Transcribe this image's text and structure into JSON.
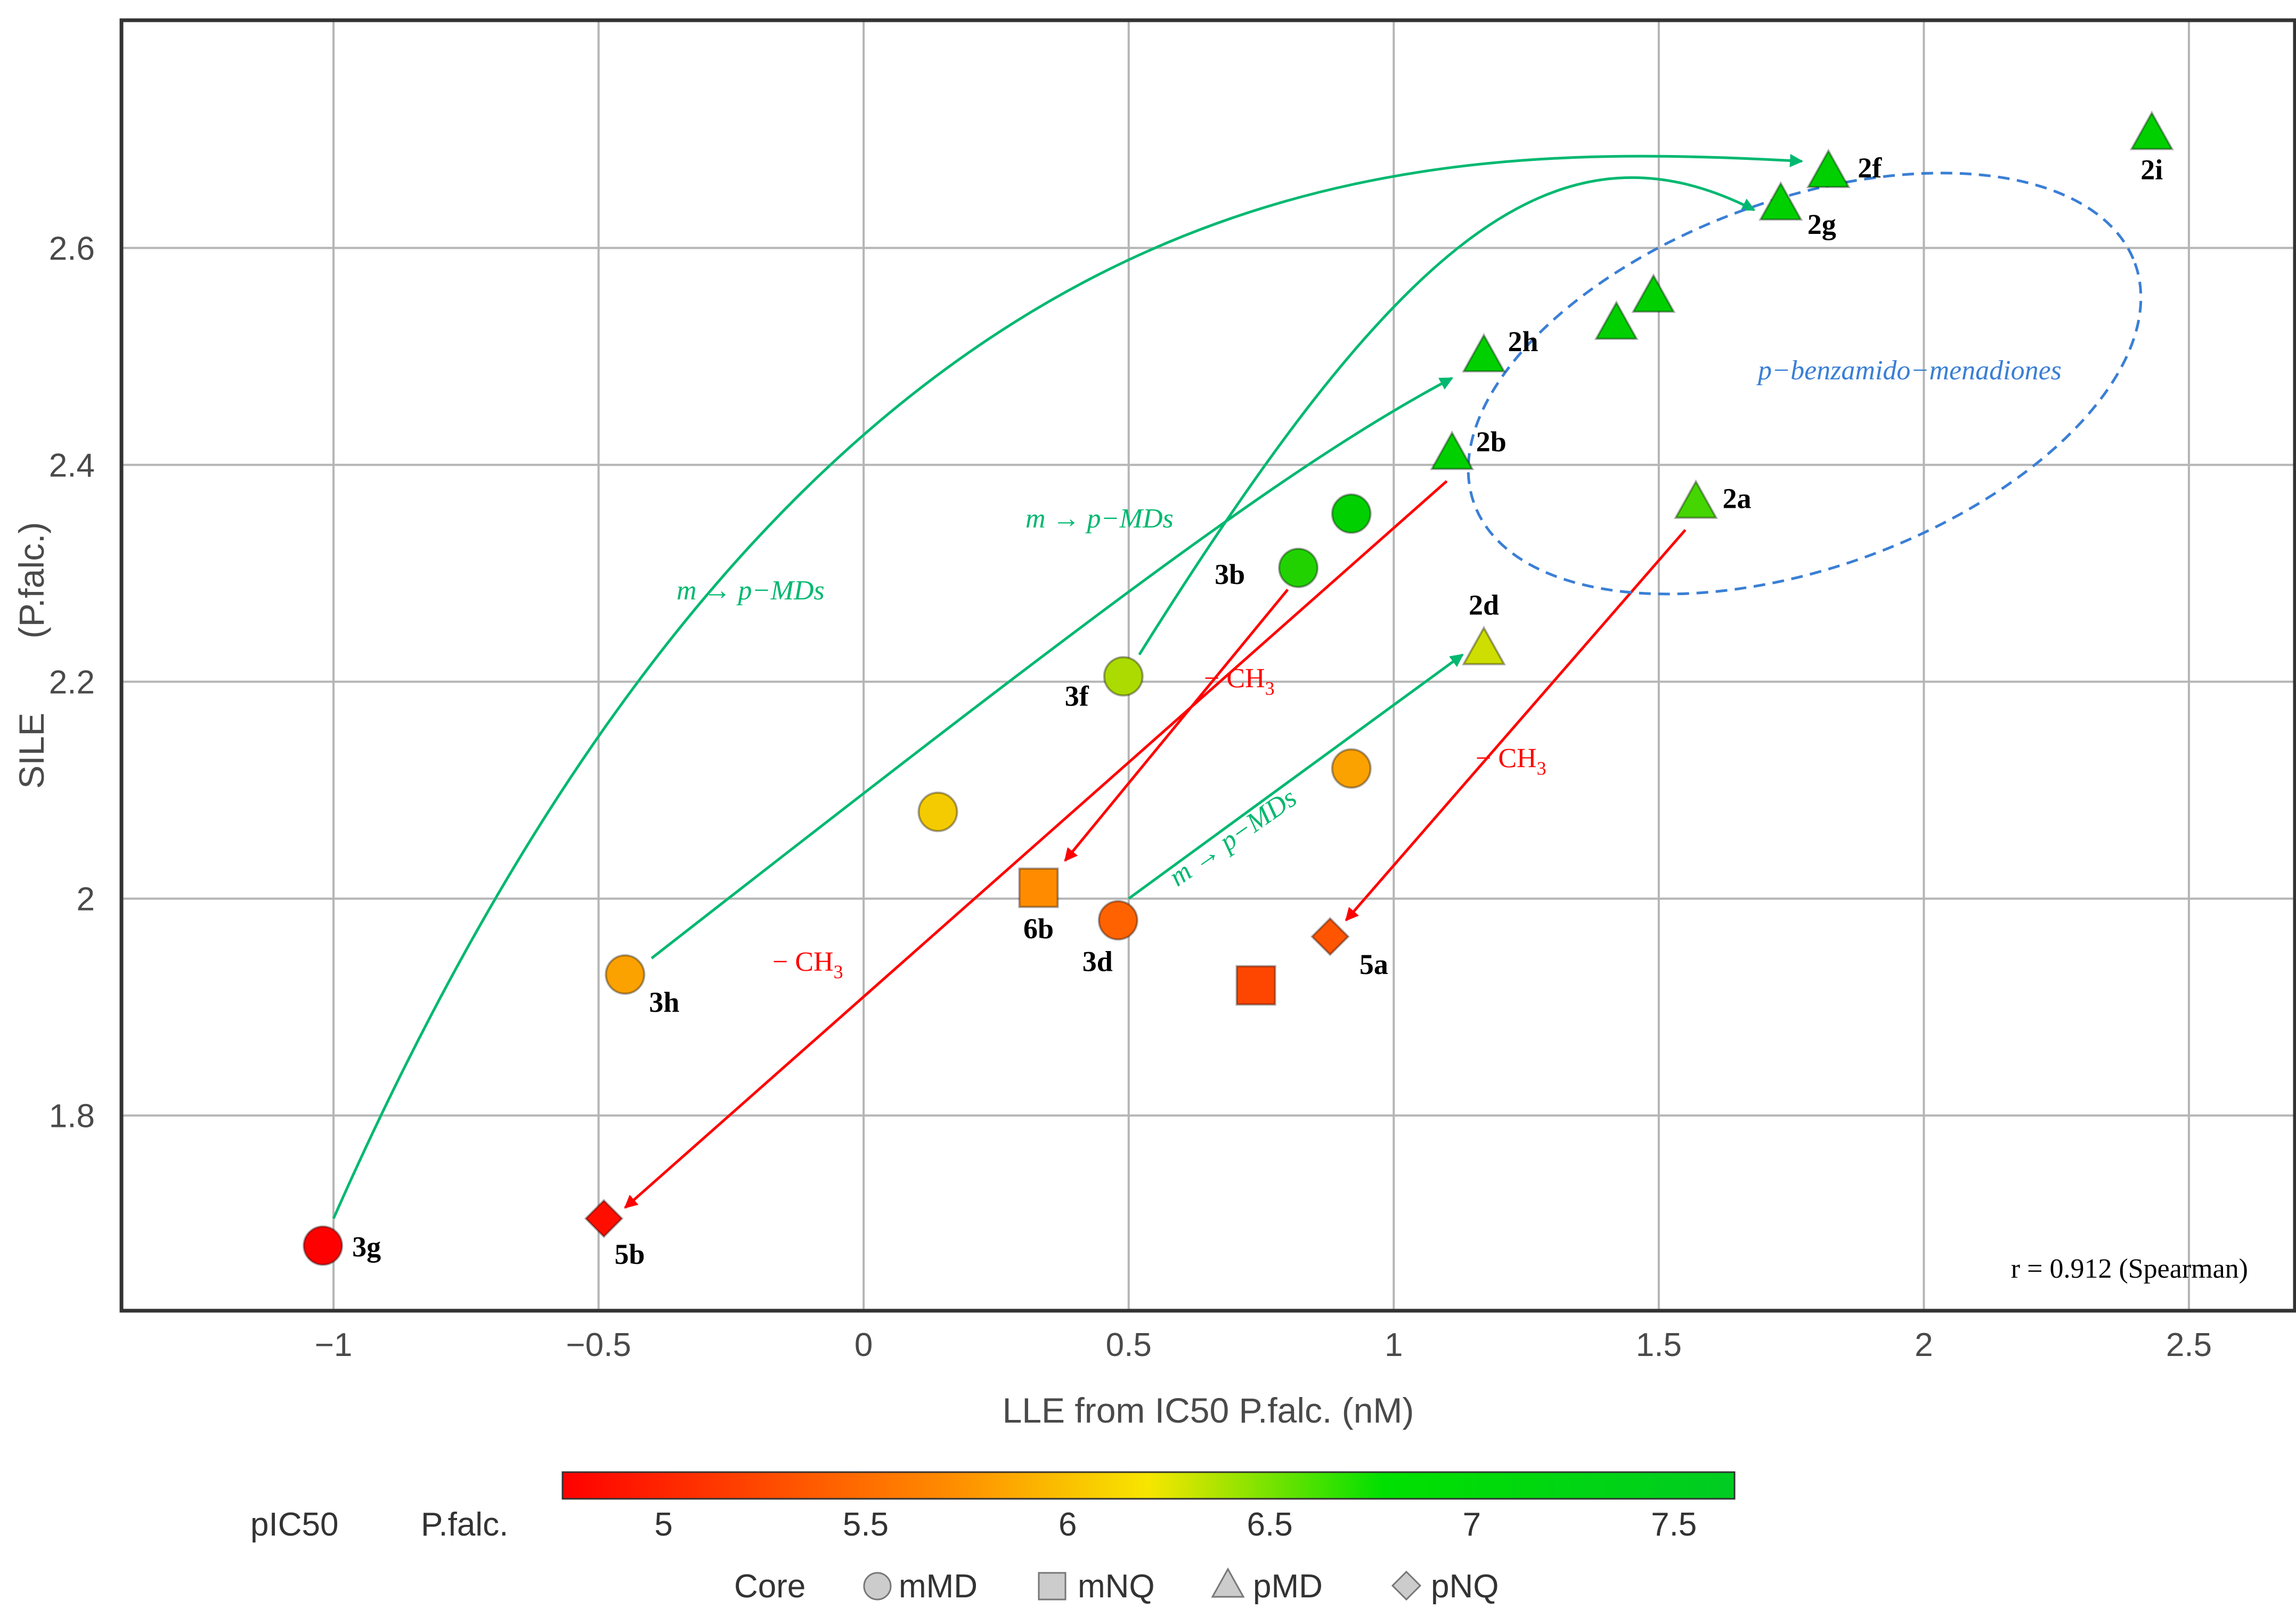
{
  "chart_data": {
    "type": "scatter",
    "xlabel": "LLE from IC50 P.falc. (nM)",
    "ylabel": "SILE",
    "ylabel_unit": "(P.falc.)",
    "xlim": [
      -1.4,
      2.7
    ],
    "ylim": [
      1.62,
      2.81
    ],
    "x_ticks": [
      -1,
      -0.5,
      0,
      0.5,
      1,
      1.5,
      2,
      2.5
    ],
    "x_tick_labels": [
      "−1",
      "−0.5",
      "0",
      "0.5",
      "1",
      "1.5",
      "2",
      "2.5"
    ],
    "y_ticks": [
      1.8,
      2.0,
      2.2,
      2.4,
      2.6
    ],
    "y_tick_labels": [
      "1.8",
      "2",
      "2.2",
      "2.4",
      "2.6"
    ],
    "grid": true,
    "colors": {
      "low": "#ff0000",
      "mid_low": "#ff8c00",
      "mid": "#f0e000",
      "high": "#00d000",
      "green_arrow": "#00b870",
      "red_arrow": "#ff0000",
      "ellipse": "#3a7fd5"
    },
    "points": [
      {
        "x": -1.02,
        "y": 1.68,
        "pIC50": 4.8,
        "shape": "circle",
        "label": "3g"
      },
      {
        "x": -0.49,
        "y": 1.705,
        "pIC50": 4.9,
        "shape": "diamond",
        "label": "5b"
      },
      {
        "x": -0.45,
        "y": 1.93,
        "pIC50": 5.9,
        "shape": "circle",
        "label": "3h"
      },
      {
        "x": 0.14,
        "y": 2.08,
        "pIC50": 6.1,
        "shape": "circle",
        "label": ""
      },
      {
        "x": 0.33,
        "y": 2.01,
        "pIC50": 5.8,
        "shape": "square",
        "label": "6b"
      },
      {
        "x": 0.48,
        "y": 1.98,
        "pIC50": 5.5,
        "shape": "circle",
        "label": "3d"
      },
      {
        "x": 0.74,
        "y": 1.92,
        "pIC50": 5.3,
        "shape": "square",
        "label": ""
      },
      {
        "x": 0.49,
        "y": 2.205,
        "pIC50": 6.4,
        "shape": "circle",
        "label": "3f"
      },
      {
        "x": 0.82,
        "y": 2.305,
        "pIC50": 6.8,
        "shape": "circle",
        "label": "3b"
      },
      {
        "x": 0.92,
        "y": 2.355,
        "pIC50": 7.2,
        "shape": "circle",
        "label": ""
      },
      {
        "x": 0.92,
        "y": 2.12,
        "pIC50": 5.9,
        "shape": "circle",
        "label": ""
      },
      {
        "x": 0.88,
        "y": 1.965,
        "pIC50": 5.4,
        "shape": "diamond",
        "label": "5a"
      },
      {
        "x": 1.11,
        "y": 2.41,
        "pIC50": 7.3,
        "shape": "triangle",
        "label": "2b"
      },
      {
        "x": 1.17,
        "y": 2.5,
        "pIC50": 7.3,
        "shape": "triangle",
        "label": "2h"
      },
      {
        "x": 1.17,
        "y": 2.23,
        "pIC50": 6.3,
        "shape": "triangle",
        "label": "2d"
      },
      {
        "x": 1.42,
        "y": 2.53,
        "pIC50": 7.3,
        "shape": "triangle",
        "label": ""
      },
      {
        "x": 1.49,
        "y": 2.555,
        "pIC50": 7.3,
        "shape": "triangle",
        "label": ""
      },
      {
        "x": 1.57,
        "y": 2.365,
        "pIC50": 6.7,
        "shape": "triangle",
        "label": "2a"
      },
      {
        "x": 1.73,
        "y": 2.64,
        "pIC50": 7.3,
        "shape": "triangle",
        "label": "2g"
      },
      {
        "x": 1.82,
        "y": 2.67,
        "pIC50": 7.3,
        "shape": "triangle",
        "label": "2f"
      },
      {
        "x": 2.43,
        "y": 2.705,
        "pIC50": 7.3,
        "shape": "triangle",
        "label": "2i"
      }
    ],
    "annotations": {
      "m_to_p_1": "m → p−MDs",
      "m_to_p_2": "m → p−MDs",
      "m_to_p_3": "m → p−MDs",
      "ch3_1": "− CH",
      "ch3_2": "− CH",
      "ch3_3": "− CH",
      "ch3_sub": "3",
      "ellipse_label": "p−benzamido−menadiones",
      "correlation": "r = 0.912 (Spearman)"
    },
    "colorbar": {
      "title": "pIC50",
      "subtitle": "P.falc.",
      "range": [
        4.75,
        7.65
      ],
      "ticks": [
        5,
        5.5,
        6,
        6.5,
        7,
        7.5
      ],
      "tick_labels": [
        "5",
        "5.5",
        "6",
        "6.5",
        "7",
        "7.5"
      ]
    },
    "legend": {
      "title": "Core",
      "items": [
        {
          "shape": "circle",
          "label": "mMD"
        },
        {
          "shape": "square",
          "label": "mNQ"
        },
        {
          "shape": "triangle",
          "label": "pMD"
        },
        {
          "shape": "diamond",
          "label": "pNQ"
        }
      ]
    }
  }
}
